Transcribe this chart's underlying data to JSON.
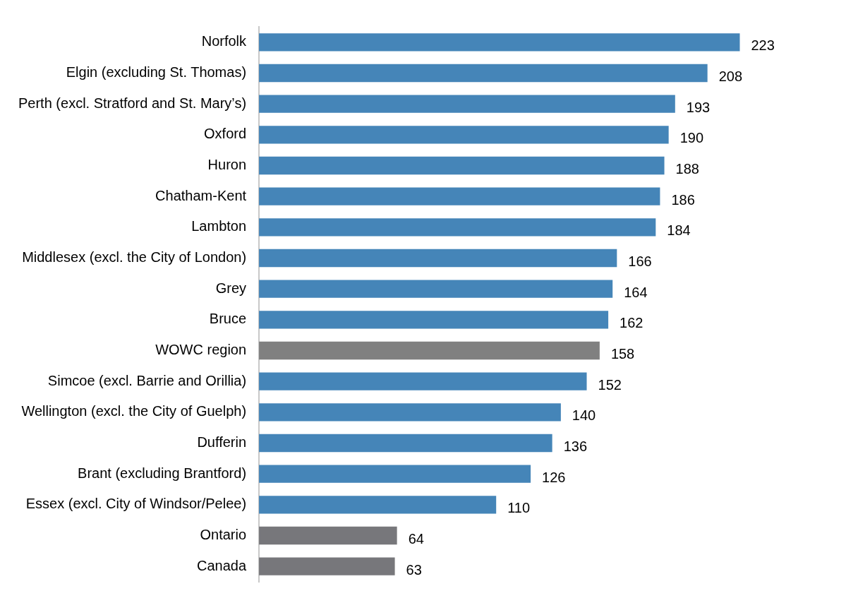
{
  "chart_data": {
    "type": "bar",
    "orientation": "horizontal",
    "data_labels": true,
    "categories": [
      "Norfolk",
      "Elgin (excluding St. Thomas)",
      "Perth (excl. Stratford and St. Mary’s)",
      "Oxford",
      "Huron",
      "Chatham-Kent",
      "Lambton",
      "Middlesex (excl. the City of London)",
      "Grey",
      "Bruce",
      "WOWC region",
      "Simcoe (excl. Barrie and Orillia)",
      "Wellington (excl. the City of Guelph)",
      "Dufferin",
      "Brant (excluding Brantford)",
      "Essex (excl. City of Windsor/Pelee)",
      "Ontario",
      "Canada"
    ],
    "values": [
      223,
      208,
      193,
      190,
      188,
      186,
      184,
      166,
      164,
      162,
      158,
      152,
      140,
      136,
      126,
      110,
      64,
      63
    ],
    "colors": [
      "#4585b8",
      "#4585b8",
      "#4585b8",
      "#4585b8",
      "#4585b8",
      "#4585b8",
      "#4585b8",
      "#4585b8",
      "#4585b8",
      "#4585b8",
      "#808080",
      "#4585b8",
      "#4585b8",
      "#4585b8",
      "#4585b8",
      "#4585b8",
      "#77777b",
      "#77777b"
    ]
  }
}
